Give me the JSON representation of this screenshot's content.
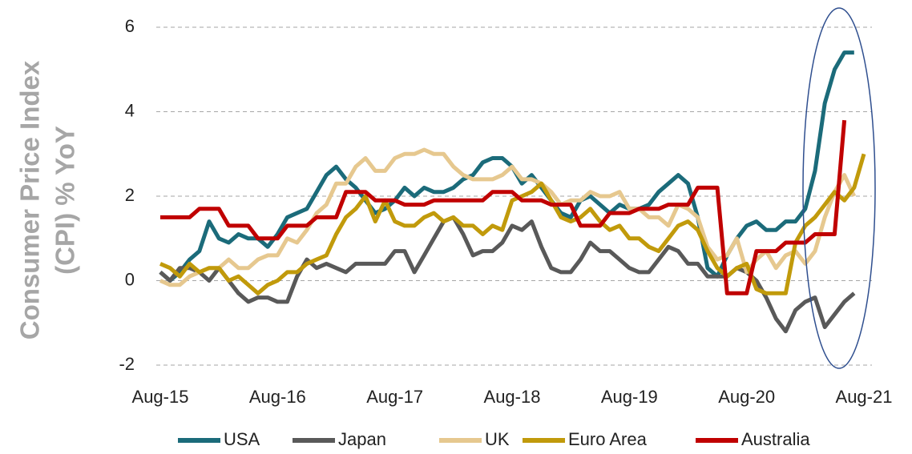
{
  "chart_data": {
    "type": "line",
    "y_label": [
      "Consumer Price Index",
      "(CPI)  % YoY"
    ],
    "categories": [
      "Aug-15",
      null,
      null,
      null,
      null,
      null,
      null,
      null,
      null,
      null,
      null,
      null,
      "Aug-16",
      null,
      null,
      null,
      null,
      null,
      null,
      null,
      null,
      null,
      null,
      null,
      "Aug-17",
      null,
      null,
      null,
      null,
      null,
      null,
      null,
      null,
      null,
      null,
      null,
      "Aug-18",
      null,
      null,
      null,
      null,
      null,
      null,
      null,
      null,
      null,
      null,
      null,
      "Aug-19",
      null,
      null,
      null,
      null,
      null,
      null,
      null,
      null,
      null,
      null,
      null,
      "Aug-20",
      null,
      null,
      null,
      null,
      null,
      null,
      null,
      null,
      null,
      null,
      null,
      "Aug-21"
    ],
    "series": [
      {
        "name": "USA",
        "color": "#1b6b7a",
        "values": [
          0.2,
          0.0,
          0.2,
          0.5,
          0.7,
          1.4,
          1.0,
          0.9,
          1.1,
          1.0,
          1.0,
          0.8,
          1.1,
          1.5,
          1.6,
          1.7,
          2.1,
          2.5,
          2.7,
          2.4,
          2.2,
          1.9,
          1.6,
          1.7,
          1.9,
          2.2,
          2.0,
          2.2,
          2.1,
          2.1,
          2.2,
          2.4,
          2.5,
          2.8,
          2.9,
          2.9,
          2.7,
          2.3,
          2.5,
          2.2,
          1.9,
          1.6,
          1.5,
          1.9,
          2.0,
          1.8,
          1.6,
          1.8,
          1.7,
          1.7,
          1.8,
          2.1,
          2.3,
          2.5,
          2.3,
          1.5,
          0.3,
          0.1,
          0.6,
          1.0,
          1.3,
          1.4,
          1.2,
          1.2,
          1.4,
          1.4,
          1.7,
          2.6,
          4.2,
          5.0,
          5.4,
          5.4,
          null
        ]
      },
      {
        "name": "Japan",
        "color": "#595959",
        "values": [
          0.2,
          0.0,
          0.3,
          0.3,
          0.2,
          0.0,
          0.3,
          0.0,
          -0.3,
          -0.5,
          -0.4,
          -0.4,
          -0.5,
          -0.5,
          0.1,
          0.5,
          0.3,
          0.4,
          0.3,
          0.2,
          0.4,
          0.4,
          0.4,
          0.4,
          0.7,
          0.7,
          0.2,
          0.6,
          1.0,
          1.4,
          1.5,
          1.1,
          0.6,
          0.7,
          0.7,
          0.9,
          1.3,
          1.2,
          1.4,
          0.8,
          0.3,
          0.2,
          0.2,
          0.5,
          0.9,
          0.7,
          0.7,
          0.5,
          0.3,
          0.2,
          0.2,
          0.5,
          0.8,
          0.7,
          0.4,
          0.4,
          0.1,
          0.1,
          0.1,
          0.3,
          0.2,
          0.0,
          -0.4,
          -0.9,
          -1.2,
          -0.7,
          -0.5,
          -0.4,
          -1.1,
          -0.8,
          -0.5,
          -0.3,
          null
        ]
      },
      {
        "name": "UK",
        "color": "#e6c88f",
        "values": [
          0.0,
          -0.1,
          -0.1,
          0.1,
          0.2,
          0.3,
          0.3,
          0.5,
          0.3,
          0.3,
          0.5,
          0.6,
          0.6,
          1.0,
          0.9,
          1.2,
          1.6,
          1.8,
          2.3,
          2.3,
          2.7,
          2.9,
          2.6,
          2.6,
          2.9,
          3.0,
          3.0,
          3.1,
          3.0,
          3.0,
          2.7,
          2.5,
          2.4,
          2.4,
          2.4,
          2.5,
          2.7,
          2.4,
          2.4,
          2.3,
          2.1,
          1.8,
          1.9,
          1.9,
          2.1,
          2.0,
          2.0,
          2.1,
          1.7,
          1.7,
          1.5,
          1.5,
          1.3,
          1.8,
          1.7,
          1.5,
          0.8,
          0.5,
          0.6,
          1.0,
          0.2,
          0.5,
          0.7,
          0.3,
          0.6,
          0.7,
          0.4,
          0.7,
          1.5,
          2.1,
          2.5,
          2.0,
          null
        ]
      },
      {
        "name": "Euro Area",
        "color": "#c19a0b",
        "values": [
          0.4,
          0.3,
          0.1,
          0.4,
          0.2,
          0.3,
          0.3,
          0.0,
          0.1,
          -0.1,
          -0.3,
          -0.1,
          0.0,
          0.2,
          0.2,
          0.4,
          0.5,
          0.6,
          1.1,
          1.5,
          1.7,
          2.0,
          1.4,
          1.9,
          1.4,
          1.3,
          1.3,
          1.5,
          1.6,
          1.4,
          1.5,
          1.3,
          1.3,
          1.1,
          1.3,
          1.2,
          1.9,
          2.0,
          2.1,
          2.3,
          1.9,
          1.5,
          1.4,
          1.5,
          1.7,
          1.4,
          1.2,
          1.3,
          1.0,
          1.0,
          0.8,
          0.7,
          1.0,
          1.3,
          1.4,
          1.2,
          0.7,
          0.3,
          0.1,
          0.3,
          0.4,
          -0.2,
          -0.3,
          -0.3,
          -0.3,
          0.9,
          1.3,
          1.5,
          1.8,
          2.1,
          1.9,
          2.2,
          3.0
        ]
      },
      {
        "name": "Australia",
        "color": "#c00000",
        "values": [
          1.5,
          1.5,
          1.5,
          1.5,
          1.7,
          1.7,
          1.7,
          1.3,
          1.3,
          1.3,
          1.0,
          1.0,
          1.0,
          1.3,
          1.3,
          1.3,
          1.5,
          1.5,
          1.5,
          2.1,
          2.1,
          2.1,
          1.9,
          1.9,
          1.9,
          1.8,
          1.8,
          1.8,
          1.9,
          1.9,
          1.9,
          1.9,
          1.9,
          1.9,
          2.1,
          2.1,
          2.1,
          1.9,
          1.9,
          1.9,
          1.8,
          1.8,
          1.8,
          1.3,
          1.3,
          1.3,
          1.6,
          1.6,
          1.6,
          1.7,
          1.7,
          1.7,
          1.8,
          1.8,
          1.8,
          2.2,
          2.2,
          2.2,
          -0.3,
          -0.3,
          -0.3,
          0.7,
          0.7,
          0.7,
          0.9,
          0.9,
          0.9,
          1.1,
          1.1,
          1.1,
          3.8,
          null,
          null
        ]
      }
    ],
    "ylim": [
      -2,
      6
    ],
    "yticks": [
      -2,
      0,
      2,
      4,
      6
    ],
    "grid": true,
    "legend": "bottom"
  }
}
